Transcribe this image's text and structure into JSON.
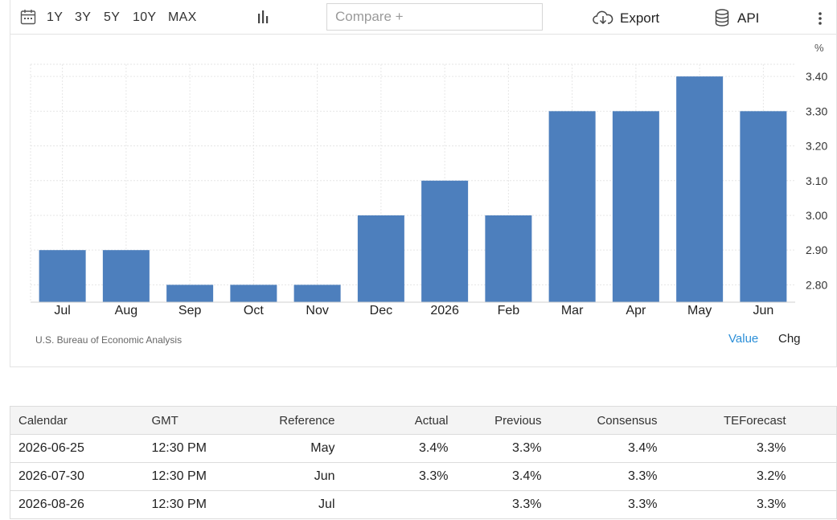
{
  "toolbar": {
    "ranges": [
      "1Y",
      "3Y",
      "5Y",
      "10Y",
      "MAX"
    ],
    "compare_placeholder": "Compare +",
    "export_label": "Export",
    "api_label": "API"
  },
  "icons": {
    "calendar": "calendar-icon",
    "chart_type": "bar-chart-icon",
    "export": "cloud-download-icon",
    "api": "database-icon",
    "more": "more-vertical-icon"
  },
  "colors": {
    "bar": "#4d7fbd",
    "active_toggle": "#2b8fd8",
    "grid": "#e6e6e6"
  },
  "chart_data": {
    "type": "bar",
    "categories": [
      "Jul",
      "Aug",
      "Sep",
      "Oct",
      "Nov",
      "Dec",
      "2026",
      "Feb",
      "Mar",
      "Apr",
      "May",
      "Jun"
    ],
    "values": [
      2.9,
      2.9,
      2.8,
      2.8,
      2.8,
      3.0,
      3.1,
      3.0,
      3.3,
      3.3,
      3.4,
      3.3
    ],
    "unit": "%",
    "y_ticks": [
      "2.80",
      "2.90",
      "3.00",
      "3.10",
      "3.20",
      "3.30",
      "3.40"
    ],
    "ylim": [
      2.75,
      3.435
    ],
    "grid": true,
    "y_axis_side": "right"
  },
  "chart_footer": {
    "source": "U.S. Bureau of Economic Analysis",
    "toggle_value": "Value",
    "toggle_chg": "Chg"
  },
  "calendar": {
    "headers": [
      "Calendar",
      "GMT",
      "Reference",
      "Actual",
      "Previous",
      "Consensus",
      "TEForecast"
    ],
    "rows": [
      [
        "2026-06-25",
        "12:30 PM",
        "May",
        "3.4%",
        "3.3%",
        "3.4%",
        "3.3%"
      ],
      [
        "2026-07-30",
        "12:30 PM",
        "Jun",
        "3.3%",
        "3.4%",
        "3.3%",
        "3.2%"
      ],
      [
        "2026-08-26",
        "12:30 PM",
        "Jul",
        "",
        "3.3%",
        "3.3%",
        "3.3%"
      ]
    ]
  }
}
